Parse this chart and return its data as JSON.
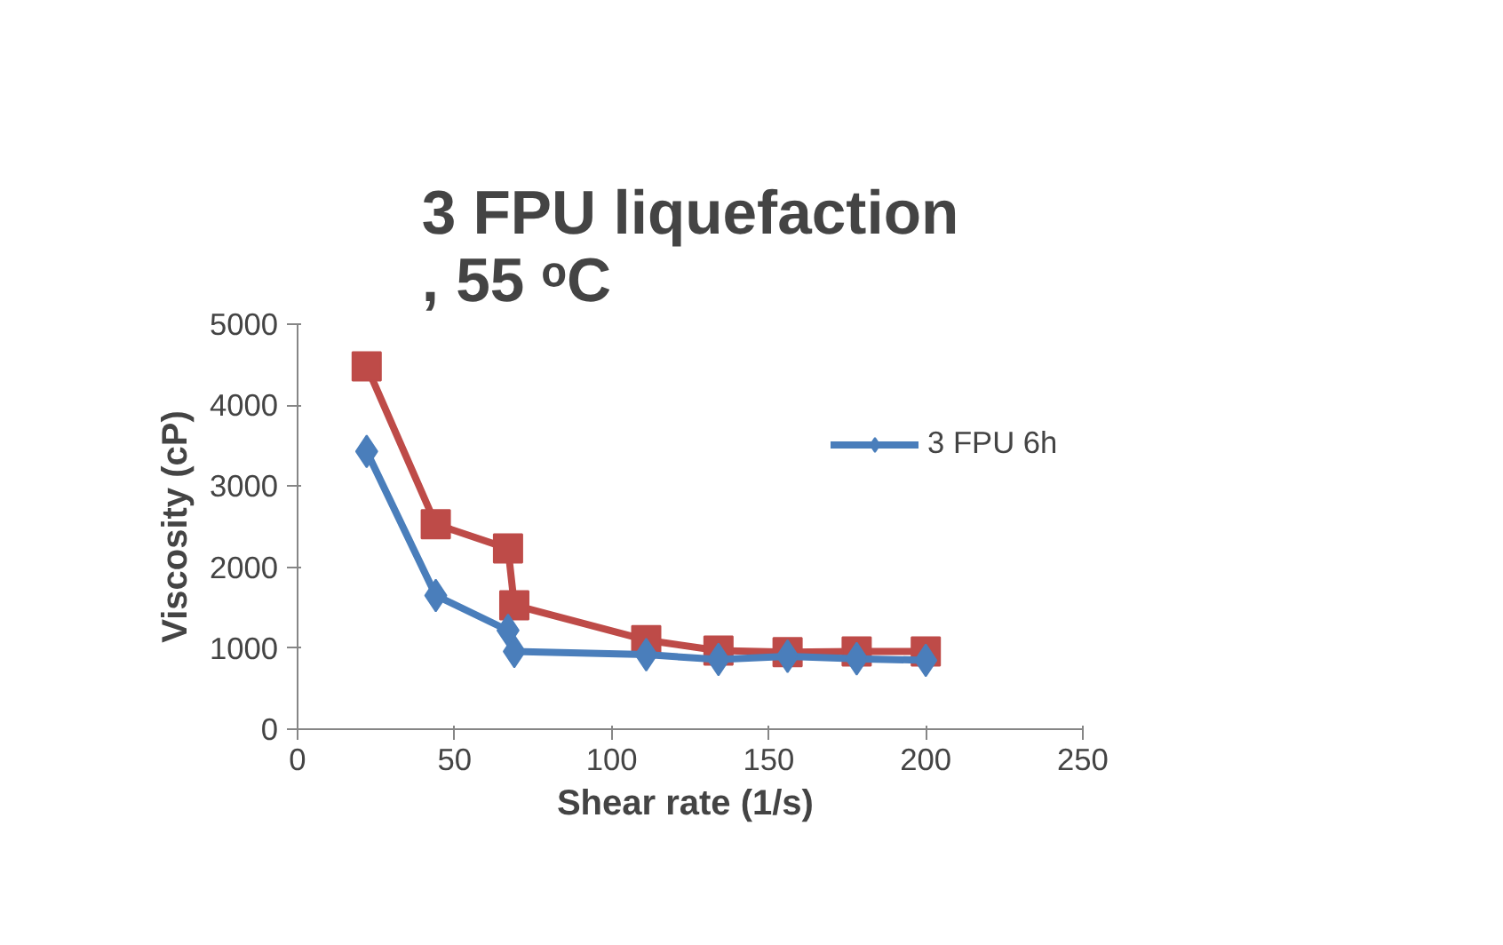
{
  "chart_data": {
    "type": "line",
    "title": "3 FPU liquefaction\n, 55 ᵒC",
    "xlabel": "Shear  rate (1/s)",
    "ylabel": "Viscosity (cP)",
    "xlim": [
      0,
      250
    ],
    "xticks": [
      0,
      50,
      100,
      150,
      200,
      250
    ],
    "ylim": [
      0,
      5000
    ],
    "yticks": [
      0,
      1000,
      2000,
      3000,
      4000,
      5000
    ],
    "grid": false,
    "legend": "right",
    "series": [
      {
        "name": "3 FPU 6h",
        "color": "#4a7ebb",
        "marker": "diamond",
        "x": [
          22,
          44,
          67,
          69,
          111,
          134,
          156,
          178,
          200
        ],
        "values": [
          3430,
          1650,
          1220,
          960,
          920,
          860,
          900,
          870,
          850
        ]
      },
      {
        "color": "#be4b48",
        "marker": "square",
        "x": [
          22,
          44,
          67,
          69,
          111,
          134,
          156,
          178,
          200
        ],
        "values": [
          4480,
          2530,
          2230,
          1530,
          1100,
          970,
          950,
          960,
          960
        ]
      }
    ]
  }
}
